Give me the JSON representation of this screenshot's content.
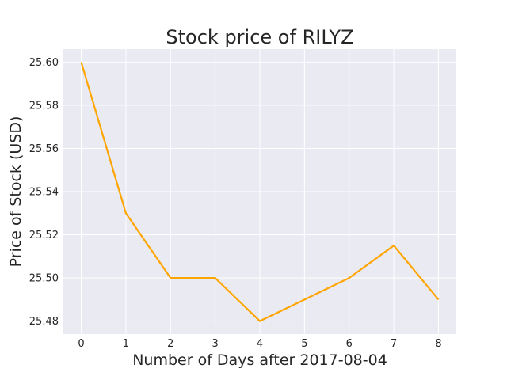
{
  "chart_data": {
    "type": "line",
    "title": "Stock price of RILYZ",
    "xlabel": "Number of Days after 2017-08-04",
    "ylabel": "Price of Stock (USD)",
    "x": [
      0,
      1,
      2,
      3,
      4,
      5,
      6,
      7,
      8
    ],
    "series": [
      {
        "values": [
          25.6,
          25.53,
          25.5,
          25.5,
          25.48,
          25.49,
          25.5,
          25.515,
          25.49
        ]
      }
    ],
    "xticks": [
      "0",
      "1",
      "2",
      "3",
      "4",
      "5",
      "6",
      "7",
      "8"
    ],
    "yticks": [
      "25.48",
      "25.50",
      "25.52",
      "25.54",
      "25.56",
      "25.58",
      "25.60"
    ],
    "xlim": [
      -0.4,
      8.4
    ],
    "ylim": [
      25.474,
      25.606
    ],
    "grid": true,
    "colors": {
      "line": "#FFA500",
      "background": "#EAEAF2",
      "grid": "#FFFFFF"
    }
  }
}
